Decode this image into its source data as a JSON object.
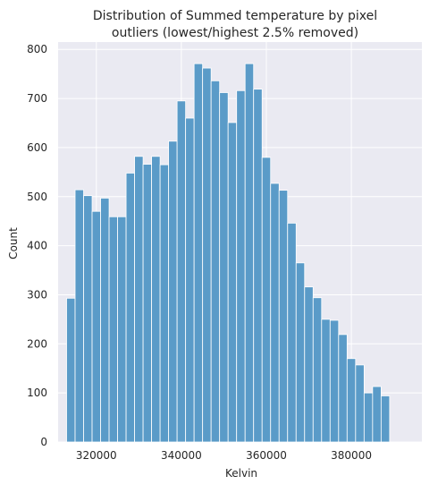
{
  "chart_data": {
    "type": "histogram",
    "title_lines": [
      "Distribution of Summed temperature by pixel",
      "outliers (lowest/highest 2.5% removed)"
    ],
    "xlabel": "Kelvin",
    "ylabel": "Count",
    "xlim": [
      311000,
      396600
    ],
    "ylim": [
      0,
      815
    ],
    "xticks": [
      320000,
      340000,
      360000,
      380000
    ],
    "xtick_labels": [
      "320000",
      "340000",
      "360000",
      "380000"
    ],
    "yticks": [
      0,
      100,
      200,
      300,
      400,
      500,
      600,
      700,
      800
    ],
    "ytick_labels": [
      "0",
      "100",
      "200",
      "300",
      "400",
      "500",
      "600",
      "700",
      "800"
    ],
    "grid": true,
    "style": "seaborn darkgrid",
    "colors": {
      "bar_fill": "#5a9bc8",
      "bar_edge": "#ffffff",
      "axes_background": "#eaeaf2",
      "grid": "#ffffff"
    },
    "bin_start": 313000,
    "bin_width": 2000,
    "counts": [
      293,
      514,
      502,
      470,
      497,
      459,
      459,
      548,
      582,
      566,
      582,
      565,
      613,
      695,
      660,
      771,
      762,
      736,
      712,
      651,
      716,
      771,
      719,
      580,
      527,
      513,
      446,
      365,
      316,
      294,
      250,
      248,
      219,
      170,
      157,
      100,
      113,
      94
    ]
  }
}
